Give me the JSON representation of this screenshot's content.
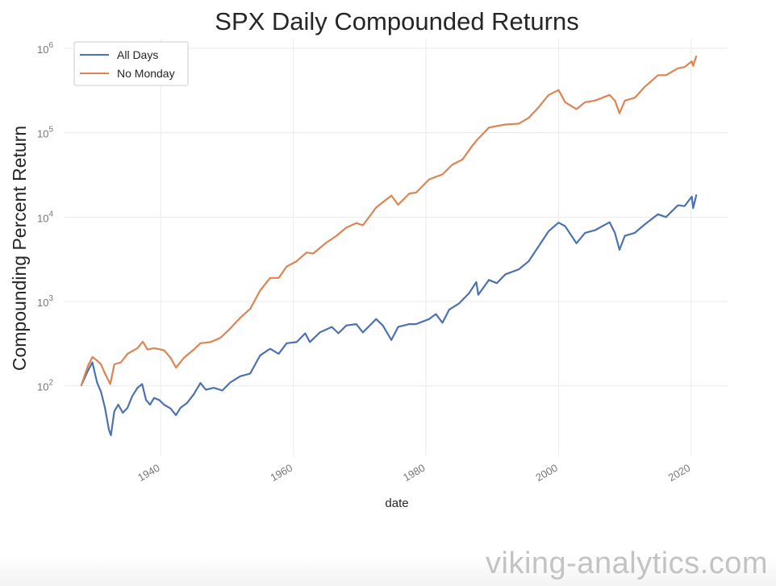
{
  "chart_data": {
    "type": "line",
    "title": "SPX Daily Compounded Returns",
    "xlabel": "date",
    "ylabel": "Compounding Percent Return",
    "yscale": "log",
    "ylim": [
      15,
      1300000
    ],
    "xlim": [
      1925.5,
      2025.5
    ],
    "x_ticks": [
      {
        "value": 1940,
        "label": "1940"
      },
      {
        "value": 1960,
        "label": "1960"
      },
      {
        "value": 1980,
        "label": "1980"
      },
      {
        "value": 2000,
        "label": "2000"
      },
      {
        "value": 2020,
        "label": "2020"
      }
    ],
    "y_ticks": [
      {
        "value": 100,
        "base": "10",
        "exp": "2"
      },
      {
        "value": 1000,
        "base": "10",
        "exp": "3"
      },
      {
        "value": 10000,
        "base": "10",
        "exp": "4"
      },
      {
        "value": 100000,
        "base": "10",
        "exp": "5"
      },
      {
        "value": 1000000,
        "base": "10",
        "exp": "6"
      }
    ],
    "grid": true,
    "legend_position": "top-left",
    "series": [
      {
        "name": "All Days",
        "color": "#4c72b0",
        "points": [
          [
            1928.0,
            100
          ],
          [
            1929.0,
            150
          ],
          [
            1929.7,
            190
          ],
          [
            1930.4,
            110
          ],
          [
            1931.0,
            85
          ],
          [
            1931.6,
            55
          ],
          [
            1932.2,
            30
          ],
          [
            1932.5,
            26
          ],
          [
            1933.0,
            50
          ],
          [
            1933.6,
            60
          ],
          [
            1934.3,
            48
          ],
          [
            1935.0,
            55
          ],
          [
            1935.7,
            75
          ],
          [
            1936.5,
            95
          ],
          [
            1937.2,
            105
          ],
          [
            1937.8,
            68
          ],
          [
            1938.4,
            60
          ],
          [
            1939.0,
            72
          ],
          [
            1939.8,
            68
          ],
          [
            1940.5,
            60
          ],
          [
            1941.5,
            54
          ],
          [
            1942.3,
            45
          ],
          [
            1943.0,
            55
          ],
          [
            1944.0,
            63
          ],
          [
            1945.0,
            80
          ],
          [
            1946.0,
            108
          ],
          [
            1946.8,
            90
          ],
          [
            1948.0,
            95
          ],
          [
            1949.3,
            88
          ],
          [
            1950.5,
            110
          ],
          [
            1952.0,
            130
          ],
          [
            1953.5,
            140
          ],
          [
            1955.0,
            230
          ],
          [
            1956.5,
            275
          ],
          [
            1957.8,
            240
          ],
          [
            1959.0,
            320
          ],
          [
            1960.5,
            330
          ],
          [
            1961.8,
            420
          ],
          [
            1962.5,
            330
          ],
          [
            1964.0,
            430
          ],
          [
            1965.8,
            500
          ],
          [
            1966.8,
            420
          ],
          [
            1968.0,
            520
          ],
          [
            1969.5,
            540
          ],
          [
            1970.5,
            430
          ],
          [
            1972.5,
            620
          ],
          [
            1973.5,
            520
          ],
          [
            1974.8,
            350
          ],
          [
            1975.8,
            500
          ],
          [
            1977.5,
            540
          ],
          [
            1978.5,
            540
          ],
          [
            1980.5,
            620
          ],
          [
            1981.5,
            710
          ],
          [
            1982.5,
            560
          ],
          [
            1983.5,
            800
          ],
          [
            1985.0,
            950
          ],
          [
            1986.5,
            1250
          ],
          [
            1987.6,
            1700
          ],
          [
            1987.9,
            1200
          ],
          [
            1989.5,
            1800
          ],
          [
            1990.7,
            1650
          ],
          [
            1992.0,
            2100
          ],
          [
            1994.0,
            2400
          ],
          [
            1995.5,
            3000
          ],
          [
            1997.0,
            4500
          ],
          [
            1998.5,
            6800
          ],
          [
            2000.0,
            8600
          ],
          [
            2001.0,
            7800
          ],
          [
            2002.7,
            4900
          ],
          [
            2004.0,
            6500
          ],
          [
            2005.5,
            7000
          ],
          [
            2007.7,
            8700
          ],
          [
            2008.5,
            6500
          ],
          [
            2009.2,
            4100
          ],
          [
            2010.0,
            6000
          ],
          [
            2011.5,
            6500
          ],
          [
            2013.0,
            8200
          ],
          [
            2015.0,
            10800
          ],
          [
            2016.2,
            10000
          ],
          [
            2018.0,
            13800
          ],
          [
            2019.0,
            13500
          ],
          [
            2020.1,
            17500
          ],
          [
            2020.3,
            12800
          ],
          [
            2020.8,
            18500
          ]
        ]
      },
      {
        "name": "No Monday",
        "color": "#dd8452",
        "points": [
          [
            1928.0,
            100
          ],
          [
            1929.0,
            170
          ],
          [
            1929.7,
            220
          ],
          [
            1930.4,
            200
          ],
          [
            1931.0,
            180
          ],
          [
            1931.6,
            140
          ],
          [
            1932.4,
            105
          ],
          [
            1933.0,
            180
          ],
          [
            1934.0,
            190
          ],
          [
            1935.0,
            240
          ],
          [
            1936.5,
            280
          ],
          [
            1937.3,
            335
          ],
          [
            1938.0,
            270
          ],
          [
            1939.0,
            280
          ],
          [
            1940.5,
            265
          ],
          [
            1941.5,
            215
          ],
          [
            1942.3,
            165
          ],
          [
            1943.5,
            215
          ],
          [
            1945.0,
            270
          ],
          [
            1946.0,
            320
          ],
          [
            1947.5,
            330
          ],
          [
            1949.0,
            370
          ],
          [
            1950.5,
            480
          ],
          [
            1952.0,
            640
          ],
          [
            1953.5,
            820
          ],
          [
            1955.0,
            1350
          ],
          [
            1956.5,
            1900
          ],
          [
            1957.8,
            1900
          ],
          [
            1959.0,
            2600
          ],
          [
            1960.5,
            3000
          ],
          [
            1962.0,
            3800
          ],
          [
            1963.0,
            3700
          ],
          [
            1965.0,
            5000
          ],
          [
            1966.5,
            6000
          ],
          [
            1968.0,
            7500
          ],
          [
            1969.5,
            8500
          ],
          [
            1970.5,
            8000
          ],
          [
            1972.5,
            13000
          ],
          [
            1973.5,
            15000
          ],
          [
            1974.8,
            18000
          ],
          [
            1975.8,
            14000
          ],
          [
            1977.5,
            19000
          ],
          [
            1978.5,
            19500
          ],
          [
            1980.5,
            28000
          ],
          [
            1981.5,
            30000
          ],
          [
            1982.5,
            32000
          ],
          [
            1984.0,
            42000
          ],
          [
            1985.5,
            48000
          ],
          [
            1987.0,
            70000
          ],
          [
            1987.9,
            85000
          ],
          [
            1989.5,
            115000
          ],
          [
            1990.7,
            120000
          ],
          [
            1992.0,
            125000
          ],
          [
            1994.0,
            128000
          ],
          [
            1995.5,
            150000
          ],
          [
            1997.0,
            200000
          ],
          [
            1998.5,
            280000
          ],
          [
            2000.0,
            320000
          ],
          [
            2001.0,
            230000
          ],
          [
            2002.7,
            190000
          ],
          [
            2004.0,
            230000
          ],
          [
            2005.5,
            240000
          ],
          [
            2007.7,
            280000
          ],
          [
            2008.5,
            240000
          ],
          [
            2009.2,
            170000
          ],
          [
            2010.0,
            240000
          ],
          [
            2011.5,
            260000
          ],
          [
            2013.0,
            350000
          ],
          [
            2015.0,
            480000
          ],
          [
            2016.2,
            480000
          ],
          [
            2018.0,
            580000
          ],
          [
            2019.0,
            600000
          ],
          [
            2020.1,
            700000
          ],
          [
            2020.3,
            620000
          ],
          [
            2020.8,
            820000
          ]
        ]
      }
    ]
  },
  "watermark": "viking-analytics.com"
}
